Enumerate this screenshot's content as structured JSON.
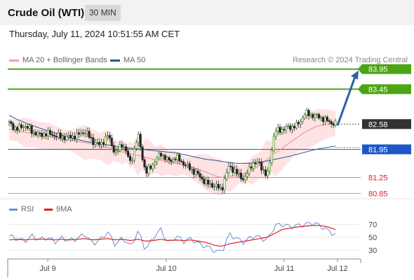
{
  "header": {
    "title": "Crude Oil (WTI)",
    "timeframe": "30 MIN"
  },
  "timestamp": "Thursday, July 11, 2024 10:51:55 AM CET",
  "legend": {
    "bollinger": {
      "label": "MA 20 + Bollinger Bands",
      "color": "#f4a0a0"
    },
    "ma50": {
      "label": "MA 50",
      "color": "#2e5597"
    },
    "copyright": "Research © 2024 Trading Central"
  },
  "rsi_legend": {
    "rsi": {
      "label": "RSI",
      "color": "#6b8fd8"
    },
    "ma": {
      "label": "9MA",
      "color": "#e01f1f"
    }
  },
  "chart_data": [
    {
      "type": "candlestick",
      "ylim": [
        80.7,
        84.05
      ],
      "x_ticks": [
        "Jul 9",
        "Jul 10",
        "Jul 11",
        "Jul 12"
      ],
      "levels": [
        {
          "value": 83.95,
          "label": "83.95",
          "kind": "resistance"
        },
        {
          "value": 83.45,
          "label": "83.45",
          "kind": "resistance"
        },
        {
          "value": 82.58,
          "label": "82.58",
          "kind": "last"
        },
        {
          "value": 81.95,
          "label": "81.95",
          "kind": "pivot"
        },
        {
          "value": 81.25,
          "label": "81.25",
          "kind": "support"
        },
        {
          "value": 80.85,
          "label": "80.85",
          "kind": "support"
        }
      ],
      "path": [
        82.6,
        82.45,
        82.55,
        82.4,
        82.3,
        82.35,
        82.3,
        82.25,
        82.25,
        82.3,
        82.4,
        82.15,
        82.05,
        82.3,
        81.85,
        82.1,
        81.6,
        82.3,
        81.35,
        81.6,
        81.85,
        81.65,
        81.75,
        81.6,
        81.45,
        81.3,
        81.1,
        81.05,
        80.95,
        81.55,
        81.35,
        81.2,
        81.6,
        81.6,
        81.25,
        82.4,
        82.45,
        82.5,
        82.55,
        82.85,
        82.8,
        82.75,
        82.65,
        82.58
      ],
      "ma20": [
        82.45,
        82.42,
        82.38,
        82.35,
        82.3,
        82.28,
        82.24,
        82.2,
        82.18,
        82.15,
        82.12,
        82.08,
        82.02,
        82.0,
        81.92,
        81.88,
        81.82,
        81.8,
        81.75,
        81.7,
        81.68,
        81.62,
        81.6,
        81.55,
        81.5,
        81.45,
        81.38,
        81.3,
        81.25,
        81.28,
        81.3,
        81.35,
        81.42,
        81.55,
        81.7,
        81.85,
        81.98,
        82.12,
        82.25,
        82.38,
        82.48,
        82.55,
        82.58,
        82.6
      ],
      "ma50": [
        82.8,
        82.7,
        82.62,
        82.55,
        82.48,
        82.42,
        82.36,
        82.3,
        82.24,
        82.2,
        82.15,
        82.12,
        82.08,
        82.06,
        82.03,
        82.0,
        81.98,
        81.96,
        81.94,
        81.92,
        81.9,
        81.88,
        81.86,
        81.82,
        81.78,
        81.74,
        81.7,
        81.68,
        81.65,
        81.62,
        81.6,
        81.6,
        81.61,
        81.63,
        81.66,
        81.7,
        81.74,
        81.78,
        81.83,
        81.88,
        81.93,
        81.97,
        82.0,
        82.03
      ],
      "forecast_arrow": {
        "from": 82.58,
        "to": 83.95
      }
    },
    {
      "type": "line",
      "title": "RSI",
      "ylim": [
        20,
        80
      ],
      "y_ticks": [
        70,
        50,
        30
      ],
      "series": [
        {
          "name": "RSI",
          "values": [
            52,
            48,
            44,
            52,
            46,
            50,
            43,
            49,
            45,
            48,
            55,
            40,
            46,
            58,
            38,
            50,
            35,
            60,
            30,
            50,
            62,
            40,
            52,
            44,
            48,
            40,
            36,
            30,
            27,
            55,
            48,
            42,
            52,
            50,
            45,
            68,
            70,
            66,
            68,
            70,
            72,
            68,
            60,
            54
          ]
        },
        {
          "name": "9MA",
          "values": [
            46,
            47,
            46,
            47,
            47,
            47,
            46,
            47,
            46,
            47,
            48,
            46,
            47,
            48,
            46,
            47,
            45,
            47,
            44,
            45,
            47,
            45,
            46,
            45,
            46,
            44,
            42,
            38,
            36,
            40,
            42,
            44,
            46,
            48,
            50,
            56,
            62,
            64,
            66,
            67,
            68,
            68,
            66,
            62
          ]
        }
      ]
    }
  ]
}
